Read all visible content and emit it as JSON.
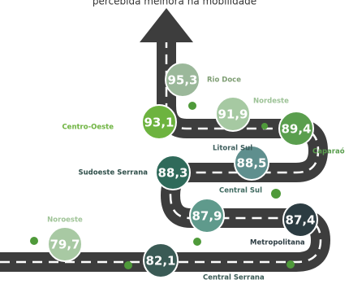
{
  "title": "percebida melhora na mobilidade",
  "nodes": [
    {
      "value": "95,3",
      "label": "Rio Doce"
    },
    {
      "value": "93,1",
      "label": "Centro-Oeste"
    },
    {
      "value": "91,9",
      "label": "Nordeste"
    },
    {
      "value": "89,4",
      "label": "Caparaó"
    },
    {
      "value": "88,3",
      "label": "Sudoeste Serrana"
    },
    {
      "value": "88,5",
      "label": "Litoral Sul"
    },
    {
      "value": "87,9",
      "label": "Central Sul"
    },
    {
      "value": "87,4",
      "label": "Metropolitana"
    },
    {
      "value": "79,7",
      "label": "Noroeste"
    },
    {
      "value": "82,1",
      "label": "Central Serrana"
    }
  ]
}
